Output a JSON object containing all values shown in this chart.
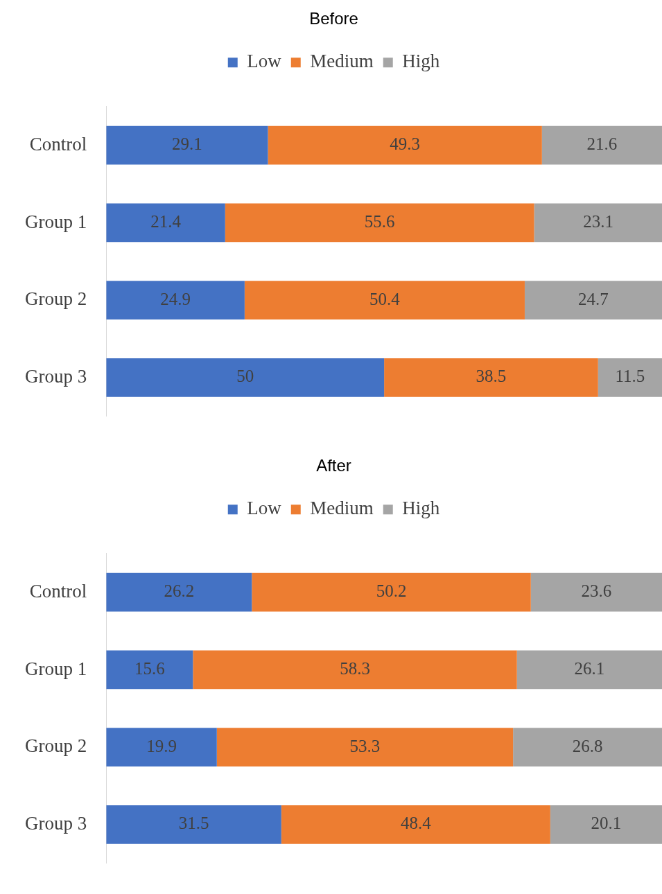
{
  "chart_data": [
    {
      "type": "bar",
      "title": "Before",
      "orientation": "horizontal",
      "stacked": true,
      "data_labels": true,
      "legend": "top",
      "tick_labels": "y",
      "xlim": [
        0,
        100
      ],
      "categories": [
        "Control",
        "Group 1",
        "Group 2",
        "Group 3"
      ],
      "series": [
        {
          "name": "Low",
          "color": "#4472c4",
          "values": [
            29.1,
            21.4,
            24.9,
            50
          ]
        },
        {
          "name": "Medium",
          "color": "#ed7d31",
          "values": [
            49.3,
            55.6,
            50.4,
            38.5
          ]
        },
        {
          "name": "High",
          "color": "#a5a5a5",
          "values": [
            21.6,
            23.1,
            24.7,
            11.5
          ]
        }
      ]
    },
    {
      "type": "bar",
      "title": "After",
      "orientation": "horizontal",
      "stacked": true,
      "data_labels": true,
      "legend": "top",
      "tick_labels": "y",
      "xlim": [
        0,
        100
      ],
      "categories": [
        "Control",
        "Group 1",
        "Group 2",
        "Group 3"
      ],
      "series": [
        {
          "name": "Low",
          "color": "#4472c4",
          "values": [
            26.2,
            15.6,
            19.9,
            31.5
          ]
        },
        {
          "name": "Medium",
          "color": "#ed7d31",
          "values": [
            50.2,
            58.3,
            53.3,
            48.4
          ]
        },
        {
          "name": "High",
          "color": "#a5a5a5",
          "values": [
            23.6,
            26.1,
            26.8,
            20.1
          ]
        }
      ]
    }
  ]
}
